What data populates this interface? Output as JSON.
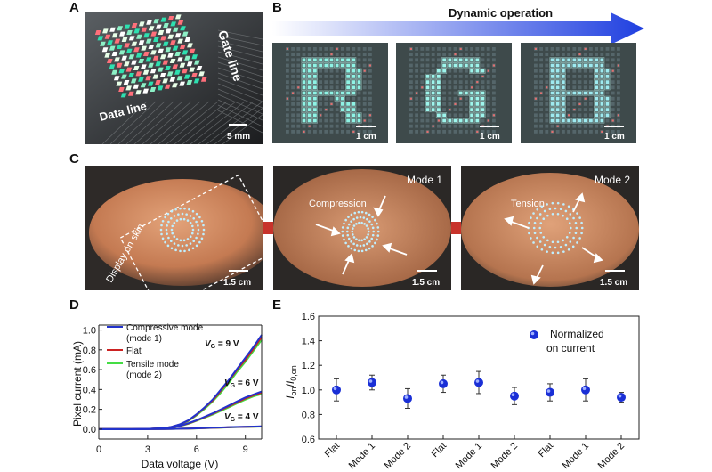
{
  "panel_labels": {
    "A": "A",
    "B": "B",
    "C": "C",
    "D": "D",
    "E": "E"
  },
  "panelA": {
    "gate_line": "Gate line",
    "data_line": "Data line",
    "scale": "5 mm"
  },
  "panelB": {
    "arrow_label": "Dynamic operation",
    "letters": [
      "R",
      "G",
      "B"
    ],
    "scale": "1 cm"
  },
  "panelC": {
    "skin_label": "Display on skin",
    "mode1": "Mode 1",
    "mode2": "Mode 2",
    "compression": "Compression",
    "tension": "Tension",
    "scale": "1.5 cm"
  },
  "colors": {
    "compressive": "#2233cc",
    "flat": "#cc2222",
    "tensile": "#44dd44",
    "marker": "#1a2fd6",
    "arrow_red": "#c8332b",
    "arrow_blue": "#1f3fe0"
  },
  "chart_data": [
    {
      "type": "line",
      "panel": "D",
      "xlabel": "Data voltage (V)",
      "ylabel": "Pixel current (mA)",
      "xlim": [
        0,
        10
      ],
      "ylim": [
        -0.1,
        1.05
      ],
      "xticks": [
        "0",
        "3",
        "6",
        "9"
      ],
      "yticks": [
        "0.0",
        "0.2",
        "0.4",
        "0.6",
        "0.8",
        "1.0"
      ],
      "legend": [
        {
          "name": "Compressive mode",
          "name2": "(mode 1)",
          "color": "#2233cc"
        },
        {
          "name": "Flat",
          "name2": "",
          "color": "#cc2222"
        },
        {
          "name": "Tensile mode",
          "name2": "(mode 2)",
          "color": "#44dd44"
        }
      ],
      "annotations": [
        "= 9 V",
        "= 6 V",
        "= 4 V"
      ],
      "vg_symbol": "V",
      "vg_sub": "G",
      "x": [
        0,
        1,
        2,
        3,
        4,
        4.5,
        5,
        5.5,
        6,
        6.5,
        7,
        7.5,
        8,
        8.5,
        9,
        9.5,
        10
      ],
      "series": [
        {
          "group": "VG = 9 V",
          "mode": "compressive",
          "values": [
            0,
            0,
            0,
            0.002,
            0.01,
            0.025,
            0.05,
            0.09,
            0.15,
            0.22,
            0.3,
            0.4,
            0.5,
            0.61,
            0.72,
            0.83,
            0.95
          ]
        },
        {
          "group": "VG = 9 V",
          "mode": "flat",
          "values": [
            0,
            0,
            0,
            0.002,
            0.01,
            0.024,
            0.048,
            0.087,
            0.145,
            0.215,
            0.29,
            0.39,
            0.49,
            0.6,
            0.7,
            0.81,
            0.93
          ]
        },
        {
          "group": "VG = 9 V",
          "mode": "tensile",
          "values": [
            0,
            0,
            0,
            0.002,
            0.009,
            0.022,
            0.045,
            0.082,
            0.138,
            0.205,
            0.28,
            0.37,
            0.47,
            0.58,
            0.68,
            0.79,
            0.9
          ]
        },
        {
          "group": "VG = 6 V",
          "mode": "compressive",
          "values": [
            0,
            0,
            0,
            0.002,
            0.008,
            0.018,
            0.035,
            0.06,
            0.09,
            0.125,
            0.16,
            0.2,
            0.24,
            0.28,
            0.32,
            0.35,
            0.38
          ]
        },
        {
          "group": "VG = 6 V",
          "mode": "flat",
          "values": [
            0,
            0,
            0,
            0.002,
            0.008,
            0.017,
            0.033,
            0.057,
            0.087,
            0.12,
            0.155,
            0.193,
            0.232,
            0.27,
            0.31,
            0.34,
            0.37
          ]
        },
        {
          "group": "VG = 6 V",
          "mode": "tensile",
          "values": [
            0,
            0,
            0,
            0.002,
            0.007,
            0.016,
            0.031,
            0.054,
            0.083,
            0.115,
            0.148,
            0.185,
            0.222,
            0.26,
            0.298,
            0.33,
            0.355
          ]
        },
        {
          "group": "VG = 4 V",
          "mode": "compressive",
          "values": [
            0,
            0,
            0,
            0,
            0.001,
            0.002,
            0.004,
            0.006,
            0.008,
            0.011,
            0.014,
            0.017,
            0.02,
            0.022,
            0.024,
            0.026,
            0.028
          ]
        },
        {
          "group": "VG = 4 V",
          "mode": "flat",
          "values": [
            0,
            0,
            0,
            0,
            0.001,
            0.002,
            0.004,
            0.006,
            0.008,
            0.01,
            0.013,
            0.016,
            0.019,
            0.021,
            0.023,
            0.025,
            0.027
          ]
        },
        {
          "group": "VG = 4 V",
          "mode": "tensile",
          "values": [
            0,
            0,
            0,
            0,
            0.001,
            0.002,
            0.003,
            0.005,
            0.007,
            0.01,
            0.012,
            0.015,
            0.018,
            0.02,
            0.022,
            0.024,
            0.026
          ]
        }
      ]
    },
    {
      "type": "scatter",
      "panel": "E",
      "ylabel_main": "I",
      "ylabel_sub": "on",
      "ylabel_den": "I",
      "ylabel_den_sub": "0,on",
      "ylim": [
        0.6,
        1.6
      ],
      "yticks": [
        "0.6",
        "0.8",
        "1.0",
        "1.2",
        "1.4",
        "1.6"
      ],
      "categories": [
        "Flat",
        "Mode 1",
        "Mode 2",
        "Flat",
        "Mode 1",
        "Mode 2",
        "Flat",
        "Mode 1",
        "Mode 2"
      ],
      "values": [
        1.0,
        1.06,
        0.93,
        1.05,
        1.06,
        0.95,
        0.98,
        1.0,
        0.94
      ],
      "errors": [
        0.09,
        0.06,
        0.08,
        0.07,
        0.09,
        0.07,
        0.07,
        0.09,
        0.04
      ],
      "legend": [
        "Normalized",
        "on current"
      ]
    }
  ]
}
